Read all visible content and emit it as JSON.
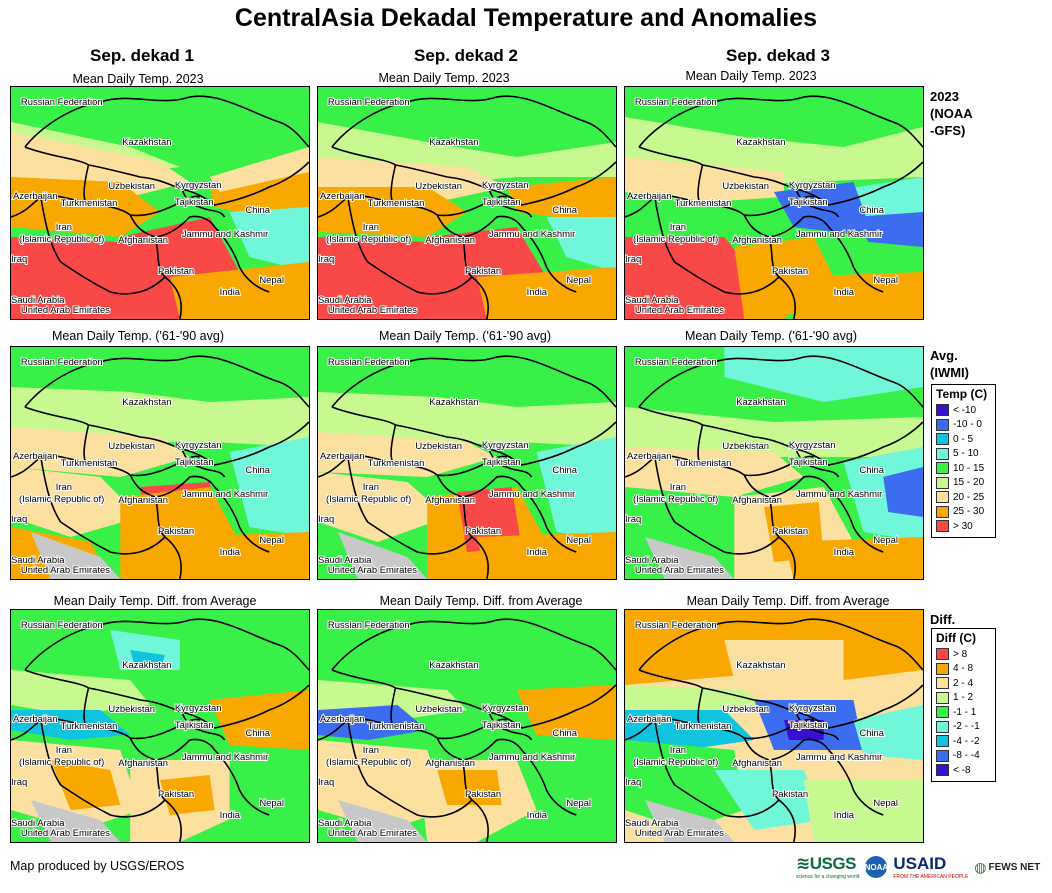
{
  "title": "CentralAsia Dekadal Temperature and Anomalies",
  "columns": [
    "Sep. dekad 1",
    "Sep. dekad 2",
    "Sep. dekad 3"
  ],
  "row_titles": {
    "current": "Mean Daily Temp. 2023",
    "average": "Mean Daily Temp. ('61-'90 avg)",
    "diff": "Mean Daily Temp. Diff. from Average"
  },
  "row_labels": {
    "current": [
      "2023",
      "(NOAA",
      "-GFS)"
    ],
    "average": [
      "Avg.",
      "(IWMI)"
    ],
    "diff": [
      "Diff."
    ]
  },
  "map_labels": {
    "russia": "Russian Federation",
    "kazakhstan": "Kazakhstan",
    "uzbekistan": "Uzbekistan",
    "kyrgyzstan": "Kyrgyzstan",
    "azerbaijan": "Azerbaijan",
    "turkmenistan": "Turkmenistan",
    "tajikistan": "Tajikistan",
    "china": "China",
    "iran1": "Iran",
    "iran2": "(Islamic Republic of)",
    "afghanistan": "Afghanistan",
    "jammu": "Jammu and Kashmir",
    "iraq": "Iraq",
    "pakistan": "Pakistan",
    "nepal": "Nepal",
    "india": "India",
    "saudi": "Saudi Arabia",
    "uae": "United Arab Emirates"
  },
  "temp_legend": {
    "title": "Temp (C)",
    "items": [
      {
        "label": "< -10",
        "color": "#3a10d0"
      },
      {
        "label": "-10 - 0",
        "color": "#3c6cf0"
      },
      {
        "label": "0 - 5",
        "color": "#10c4e0"
      },
      {
        "label": "5 - 10",
        "color": "#70f6d8"
      },
      {
        "label": "10 - 15",
        "color": "#38f048"
      },
      {
        "label": "15 - 20",
        "color": "#c8f890"
      },
      {
        "label": "20 - 25",
        "color": "#fce0a0"
      },
      {
        "label": "25 - 30",
        "color": "#f8a800"
      },
      {
        "label": "> 30",
        "color": "#f84848"
      }
    ]
  },
  "diff_legend": {
    "title": "Diff (C)",
    "items": [
      {
        "label": "> 8",
        "color": "#f84848"
      },
      {
        "label": "4 - 8",
        "color": "#f8a800"
      },
      {
        "label": "2 - 4",
        "color": "#fce0a0"
      },
      {
        "label": "1 - 2",
        "color": "#c8f890"
      },
      {
        "label": "-1 - 1",
        "color": "#38f048"
      },
      {
        "label": "-2 - -1",
        "color": "#70f6d8"
      },
      {
        "label": "-4 - -2",
        "color": "#10c4e0"
      },
      {
        "label": "-8 - -4",
        "color": "#3c6cf0"
      },
      {
        "label": "< -8",
        "color": "#3a10d0"
      }
    ]
  },
  "footer": "Map produced by USGS/EROS",
  "logos": {
    "usgs": "USGS",
    "usgs_tag": "science for a changing world",
    "noaa": "NOAA",
    "usaid": "USAID",
    "usaid_tag": "FROM THE AMERICAN PEOPLE",
    "fews": "FEWS NET"
  }
}
